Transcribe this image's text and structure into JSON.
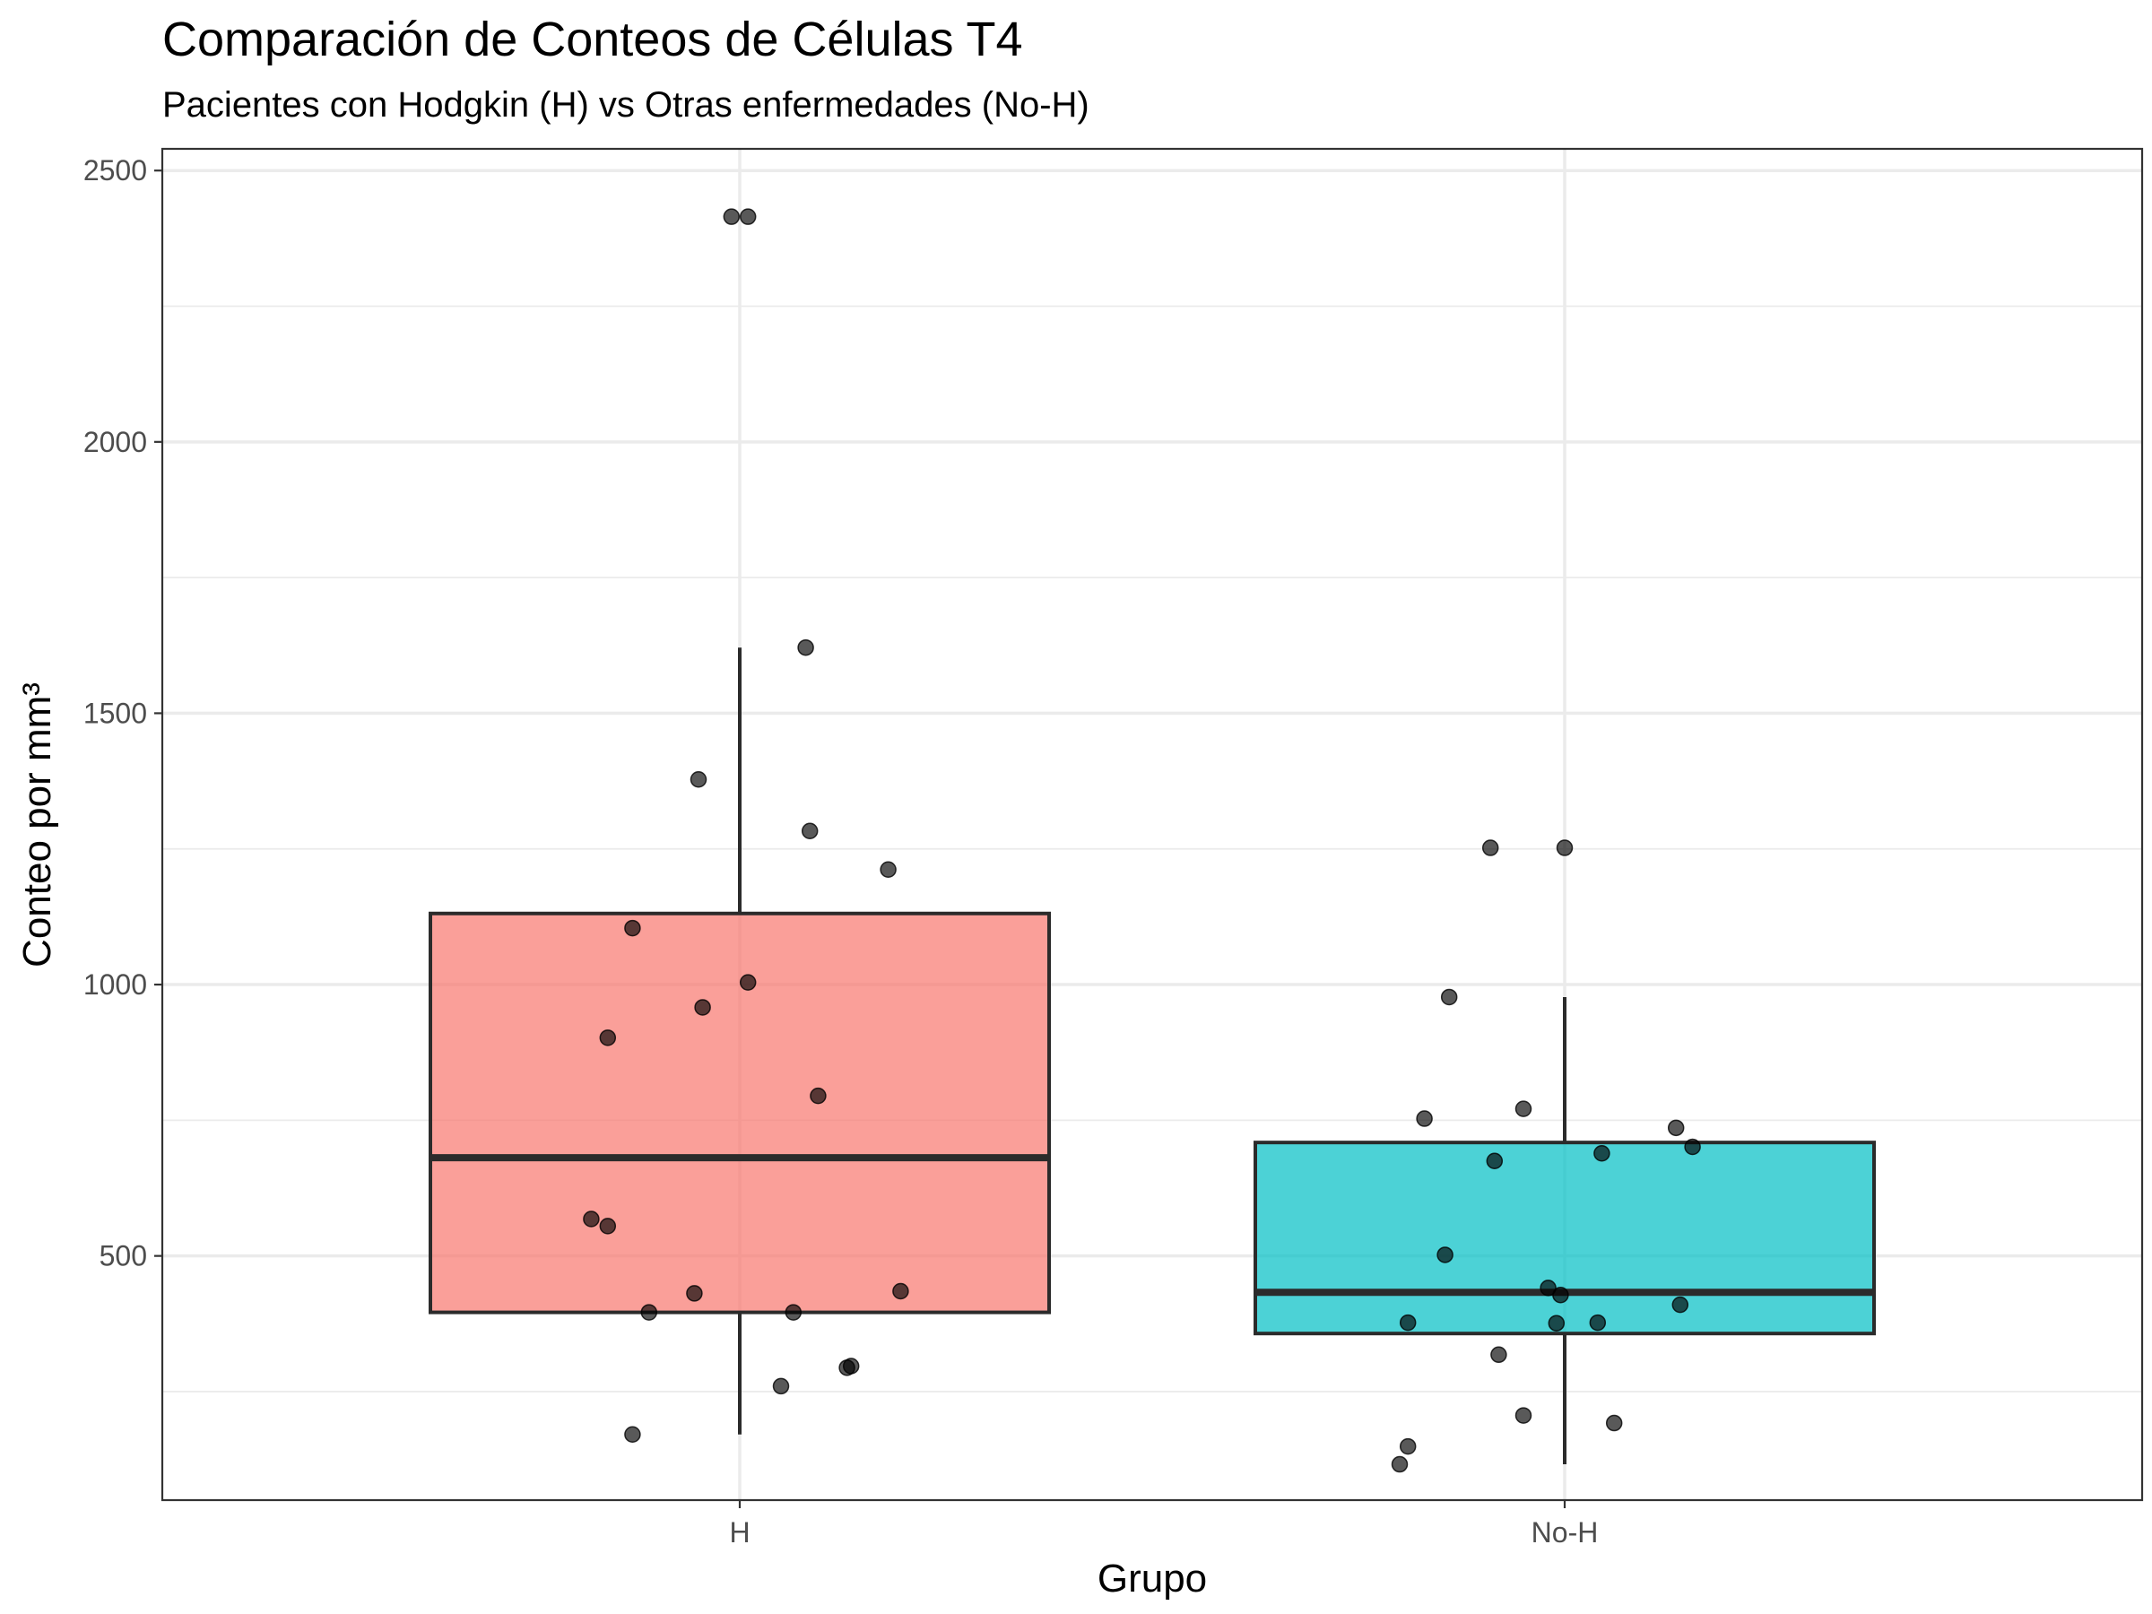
{
  "chart_data": {
    "type": "boxplot",
    "title": "Comparación de Conteos de Células T4",
    "subtitle": "Pacientes con Hodgkin (H) vs Otras enfermedades (No-H)",
    "xlabel": "Grupo",
    "ylabel": "Conteo por mm³",
    "categories": [
      "H",
      "No-H"
    ],
    "ylim": [
      50,
      2540
    ],
    "yticks": [
      500,
      1000,
      1500,
      2000,
      2500
    ],
    "yminor": [
      250,
      750,
      1250,
      1750,
      2250
    ],
    "ytick_labels": [
      "500",
      "1000",
      "1500",
      "2000",
      "2500"
    ],
    "grid": true,
    "legend": "none",
    "series": [
      {
        "category": "H",
        "color": "#F8766D",
        "box": {
          "whisker_low": 171,
          "q1": 396,
          "median": 681,
          "q3": 1131,
          "whisker_high": 1621
        },
        "points": [
          {
            "jitter": -0.01,
            "y": 2415
          },
          {
            "jitter": 0.01,
            "y": 2415
          },
          {
            "jitter": 0.08,
            "y": 1621
          },
          {
            "jitter": -0.05,
            "y": 1378
          },
          {
            "jitter": 0.085,
            "y": 1283
          },
          {
            "jitter": 0.18,
            "y": 1212
          },
          {
            "jitter": -0.13,
            "y": 1104
          },
          {
            "jitter": 0.01,
            "y": 1004
          },
          {
            "jitter": -0.045,
            "y": 958
          },
          {
            "jitter": -0.16,
            "y": 902
          },
          {
            "jitter": 0.095,
            "y": 795
          },
          {
            "jitter": -0.18,
            "y": 568
          },
          {
            "jitter": -0.16,
            "y": 555
          },
          {
            "jitter": 0.195,
            "y": 435
          },
          {
            "jitter": -0.055,
            "y": 431
          },
          {
            "jitter": -0.11,
            "y": 396
          },
          {
            "jitter": 0.065,
            "y": 396
          },
          {
            "jitter": 0.13,
            "y": 294
          },
          {
            "jitter": 0.135,
            "y": 297
          },
          {
            "jitter": 0.05,
            "y": 260
          },
          {
            "jitter": -0.13,
            "y": 171
          }
        ]
      },
      {
        "category": "No-H",
        "color": "#00BFC4",
        "box": {
          "whisker_low": 116,
          "q1": 357,
          "median": 433,
          "q3": 709,
          "whisker_high": 977
        },
        "points": [
          {
            "jitter": -0.09,
            "y": 1252
          },
          {
            "jitter": 0.0,
            "y": 1252
          },
          {
            "jitter": -0.14,
            "y": 977
          },
          {
            "jitter": -0.17,
            "y": 753
          },
          {
            "jitter": -0.05,
            "y": 771
          },
          {
            "jitter": 0.135,
            "y": 736
          },
          {
            "jitter": 0.155,
            "y": 701
          },
          {
            "jitter": 0.045,
            "y": 689
          },
          {
            "jitter": -0.085,
            "y": 675
          },
          {
            "jitter": -0.145,
            "y": 502
          },
          {
            "jitter": -0.02,
            "y": 441
          },
          {
            "jitter": -0.005,
            "y": 428
          },
          {
            "jitter": 0.14,
            "y": 410
          },
          {
            "jitter": -0.19,
            "y": 377
          },
          {
            "jitter": -0.01,
            "y": 376
          },
          {
            "jitter": 0.04,
            "y": 377
          },
          {
            "jitter": -0.08,
            "y": 318
          },
          {
            "jitter": -0.05,
            "y": 206
          },
          {
            "jitter": 0.06,
            "y": 192
          },
          {
            "jitter": -0.19,
            "y": 149
          },
          {
            "jitter": -0.2,
            "y": 116
          }
        ]
      }
    ]
  }
}
